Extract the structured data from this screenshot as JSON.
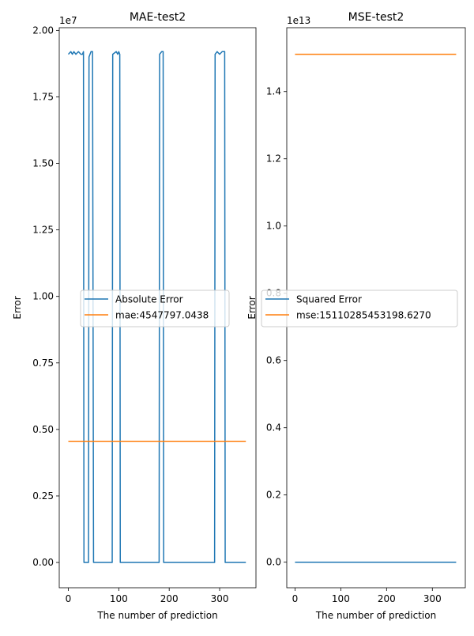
{
  "chart_data": [
    {
      "type": "line",
      "title": "MAE-test2",
      "xlabel": "The number of prediction",
      "ylabel": "Error",
      "offset_text": "1e7",
      "scale": 10000000,
      "xlim": [
        -18,
        372
      ],
      "ylim": [
        -0.095,
        2.01
      ],
      "xticks": [
        0,
        100,
        200,
        300
      ],
      "xtick_labels": [
        "0",
        "100",
        "200",
        "300"
      ],
      "yticks": [
        0,
        0.25,
        0.5,
        0.75,
        1.0,
        1.25,
        1.5,
        1.75,
        2.0
      ],
      "ytick_labels": [
        "0.00",
        "0.25",
        "0.50",
        "0.75",
        "1.00",
        "1.25",
        "1.50",
        "1.75",
        "2.00"
      ],
      "grid": false,
      "legend_position": "center-right",
      "series": [
        {
          "name": "Absolute Error",
          "color": "#1f77b4",
          "x": [
            0,
            5,
            8,
            11,
            15,
            20,
            25,
            28,
            30,
            31,
            40,
            41,
            45,
            48,
            50,
            51,
            87,
            88,
            95,
            98,
            100,
            102,
            103,
            180,
            181,
            185,
            188,
            189,
            290,
            291,
            295,
            300,
            305,
            310,
            311,
            352
          ],
          "y": [
            1.91,
            1.92,
            1.91,
            1.92,
            1.91,
            1.92,
            1.91,
            1.91,
            1.92,
            0.0,
            0.0,
            1.9,
            1.92,
            1.92,
            0.0,
            0.0,
            0.0,
            1.91,
            1.92,
            1.91,
            1.92,
            1.91,
            0.0,
            0.0,
            1.91,
            1.92,
            1.92,
            0.0,
            0.0,
            1.91,
            1.92,
            1.91,
            1.92,
            1.92,
            0.0,
            0.0
          ]
        },
        {
          "name": "mae:4547797.0438",
          "color": "#ff7f0e",
          "x": [
            0,
            352
          ],
          "y": [
            0.4548,
            0.4548
          ]
        }
      ]
    },
    {
      "type": "line",
      "title": "MSE-test2",
      "xlabel": "The number of prediction",
      "ylabel": "Error",
      "offset_text": "1e13",
      "scale": 10000000000000,
      "xlim": [
        -18,
        372
      ],
      "ylim": [
        -0.076,
        1.59
      ],
      "xticks": [
        0,
        100,
        200,
        300
      ],
      "xtick_labels": [
        "0",
        "100",
        "200",
        "300"
      ],
      "yticks": [
        0,
        0.2,
        0.4,
        0.6,
        0.8,
        1.0,
        1.2,
        1.4
      ],
      "ytick_labels": [
        "0.0",
        "0.2",
        "0.4",
        "0.6",
        "0.8",
        "1.0",
        "1.2",
        "1.4"
      ],
      "grid": false,
      "legend_position": "center-right",
      "series": [
        {
          "name": "Squared Error",
          "color": "#1f77b4",
          "x": [
            0,
            352
          ],
          "y": [
            0.0,
            0.0
          ]
        },
        {
          "name": "mse:15110285453198.6270",
          "color": "#ff7f0e",
          "x": [
            0,
            352
          ],
          "y": [
            1.511,
            1.511
          ]
        }
      ]
    }
  ]
}
